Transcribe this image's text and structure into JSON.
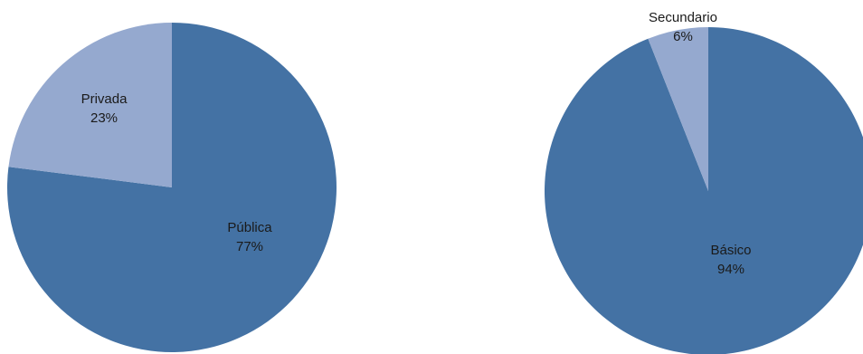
{
  "chart_data": [
    {
      "type": "pie",
      "title": "",
      "slices": [
        {
          "label": "Pública",
          "value": 77,
          "value_label": "77%",
          "color": "#4472A4"
        },
        {
          "label": "Privada",
          "value": 23,
          "value_label": "23%",
          "color": "#95A9CF"
        }
      ],
      "legend": "none"
    },
    {
      "type": "pie",
      "title": "",
      "slices": [
        {
          "label": "Básico",
          "value": 94,
          "value_label": "94%",
          "color": "#4472A4"
        },
        {
          "label": "Secundario",
          "value": 6,
          "value_label": "6%",
          "color": "#95A9CF"
        }
      ],
      "legend": "none"
    }
  ]
}
